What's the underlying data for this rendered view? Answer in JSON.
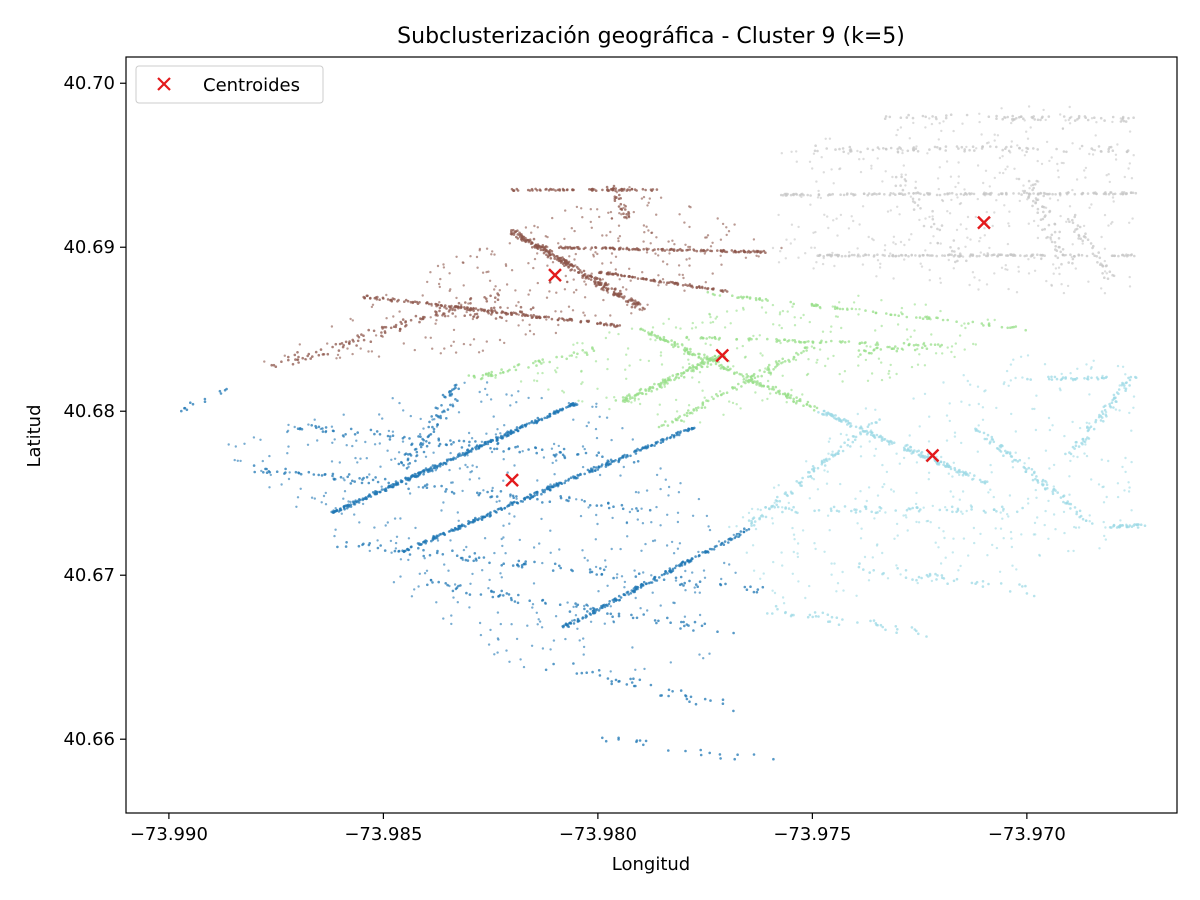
{
  "chart_data": {
    "type": "scatter",
    "title": "Subclusterización geográfica - Cluster 9 (k=5)",
    "xlabel": "Longitud",
    "ylabel": "Latitud",
    "xlim": [
      -73.991,
      -73.9665
    ],
    "ylim": [
      40.6555,
      40.7016
    ],
    "xticks": [
      -73.99,
      -73.985,
      -73.98,
      -73.975,
      -73.97
    ],
    "xtick_labels": [
      "−73.990",
      "−73.985",
      "−73.980",
      "−73.975",
      "−73.970"
    ],
    "yticks": [
      40.66,
      40.67,
      40.68,
      40.69,
      40.7
    ],
    "ytick_labels": [
      "40.66",
      "40.67",
      "40.68",
      "40.69",
      "40.70"
    ],
    "grid": false,
    "legend": {
      "position": "top-left",
      "entries": [
        "Centroides"
      ]
    },
    "colors": {
      "cluster_0": "#1f77b4",
      "cluster_1": "#8c564b",
      "cluster_2": "#98df8a",
      "cluster_3": "#c7c7c7",
      "cluster_4": "#9edae5",
      "centroid": "#e31a1c"
    },
    "clusters": [
      {
        "id": 0,
        "color_key": "cluster_0",
        "centroid": [
          -73.982,
          40.6758
        ]
      },
      {
        "id": 1,
        "color_key": "cluster_1",
        "centroid": [
          -73.981,
          40.6883
        ]
      },
      {
        "id": 2,
        "color_key": "cluster_2",
        "centroid": [
          -73.9771,
          40.6834
        ]
      },
      {
        "id": 3,
        "color_key": "cluster_3",
        "centroid": [
          -73.971,
          40.6915
        ]
      },
      {
        "id": 4,
        "color_key": "cluster_4",
        "centroid": [
          -73.9722,
          40.6773
        ]
      }
    ]
  }
}
